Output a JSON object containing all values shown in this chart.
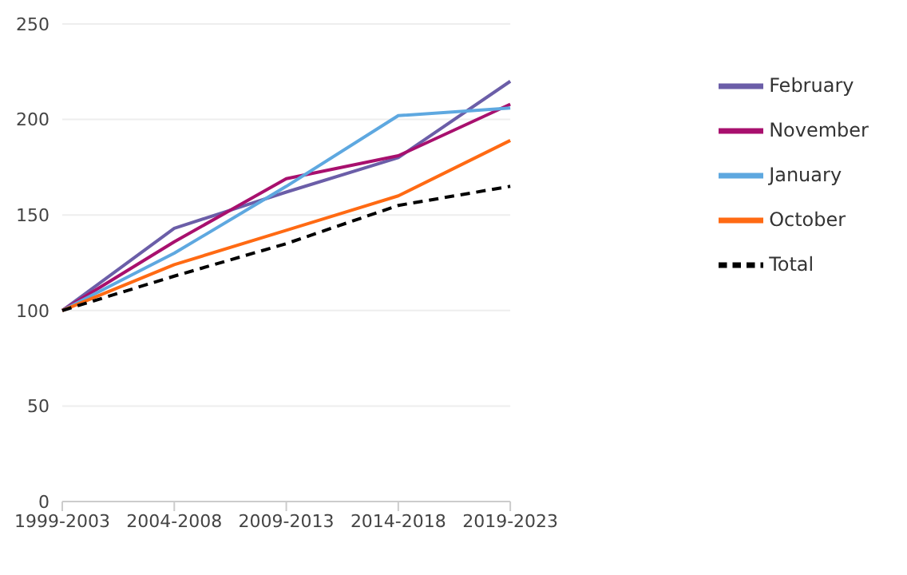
{
  "chart_data": {
    "type": "line",
    "categories": [
      "1999-2003",
      "2004-2008",
      "2009-2013",
      "2014-2018",
      "2019-2023"
    ],
    "series": [
      {
        "name": "February",
        "color": "#6b5ea8",
        "values": [
          100,
          143,
          162,
          180,
          220
        ]
      },
      {
        "name": "November",
        "color": "#a8106e",
        "values": [
          100,
          136,
          169,
          181,
          208
        ]
      },
      {
        "name": "January",
        "color": "#5ea8e0",
        "values": [
          100,
          130,
          165,
          202,
          206
        ]
      },
      {
        "name": "October",
        "color": "#ff6a13",
        "values": [
          100,
          124,
          142,
          160,
          189
        ]
      },
      {
        "name": "Total",
        "color": "#000000",
        "values": [
          100,
          118,
          135,
          155,
          165
        ],
        "line_style": "dashed"
      }
    ],
    "ylim": [
      0,
      250
    ],
    "yticks": [
      0,
      50,
      100,
      150,
      200,
      250
    ],
    "grid": "y",
    "legend": "right",
    "marker": "none",
    "line_style": "solid"
  }
}
